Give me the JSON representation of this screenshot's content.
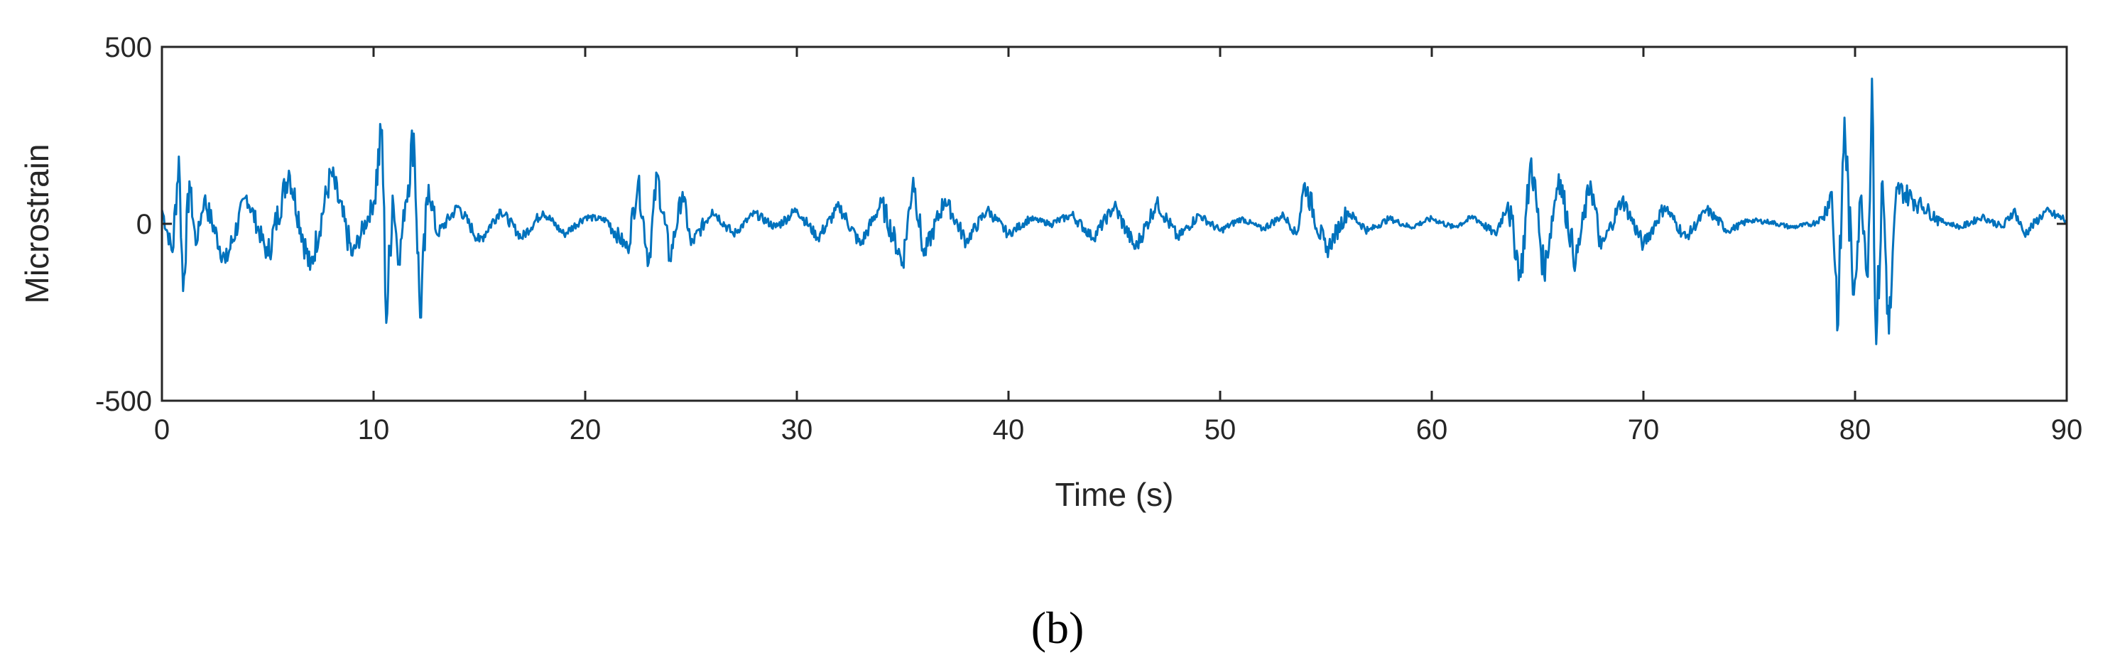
{
  "chart_data": {
    "type": "line",
    "title": "",
    "xlabel": "Time (s)",
    "ylabel": "Microstrain",
    "xlim": [
      0,
      90
    ],
    "ylim": [
      -500,
      500
    ],
    "x_ticks": [
      0,
      10,
      20,
      30,
      40,
      50,
      60,
      70,
      80,
      90
    ],
    "x_tick_labels": [
      "0",
      "10",
      "20",
      "30",
      "40",
      "50",
      "60",
      "70",
      "80",
      "90"
    ],
    "y_ticks": [
      -500,
      0,
      500
    ],
    "y_tick_labels": [
      "-500",
      "0",
      "500"
    ],
    "grid": false,
    "legend": "none",
    "series": [
      {
        "color": "#0072BD",
        "x": [
          0.0,
          0.5,
          0.8,
          1.0,
          1.3,
          1.6,
          2.0,
          3.0,
          4.0,
          5.0,
          6.0,
          7.0,
          8.0,
          9.0,
          10.0,
          10.4,
          10.6,
          10.9,
          11.2,
          11.5,
          11.9,
          12.2,
          12.6,
          13.0,
          14.0,
          15.0,
          16.0,
          17.0,
          18.0,
          19.0,
          20.0,
          21.0,
          22.0,
          22.5,
          23.0,
          23.4,
          24.0,
          24.6,
          25.0,
          26.0,
          27.0,
          28.0,
          29.0,
          30.0,
          31.0,
          32.0,
          33.0,
          34.0,
          35.0,
          35.5,
          36.0,
          37.0,
          38.0,
          39.0,
          40.0,
          41.0,
          42.0,
          43.0,
          44.0,
          45.0,
          46.0,
          47.0,
          48.0,
          49.0,
          50.0,
          51.0,
          52.0,
          53.0,
          53.6,
          54.0,
          55.0,
          56.0,
          57.0,
          58.0,
          59.0,
          60.0,
          61.0,
          62.0,
          63.0,
          63.6,
          64.2,
          64.7,
          65.3,
          66.0,
          66.8,
          67.5,
          68.0,
          69.0,
          70.0,
          71.0,
          72.0,
          73.0,
          74.0,
          75.0,
          76.0,
          77.0,
          78.0,
          78.5,
          78.9,
          79.2,
          79.5,
          79.9,
          80.3,
          80.6,
          80.8,
          81.0,
          81.3,
          81.6,
          82.0,
          83.0,
          84.0,
          85.0,
          86.0,
          87.0,
          87.5,
          88.0,
          89.0,
          90.0
        ],
        "y": [
          40,
          -80,
          190,
          -190,
          120,
          -60,
          70,
          -110,
          80,
          -90,
          150,
          -130,
          145,
          -90,
          60,
          265,
          -280,
          80,
          -110,
          60,
          255,
          -265,
          110,
          -30,
          50,
          -50,
          40,
          -40,
          35,
          -30,
          20,
          10,
          -70,
          120,
          -110,
          140,
          -100,
          90,
          -60,
          40,
          -30,
          30,
          -10,
          40,
          -40,
          50,
          -60,
          60,
          -110,
          130,
          -90,
          70,
          -50,
          40,
          -30,
          15,
          0,
          25,
          -40,
          50,
          -70,
          60,
          -40,
          25,
          -20,
          15,
          -15,
          25,
          -30,
          115,
          -80,
          35,
          -20,
          15,
          -10,
          15,
          -10,
          20,
          -30,
          60,
          -150,
          185,
          -140,
          140,
          -110,
          120,
          -70,
          70,
          -60,
          50,
          -40,
          40,
          -20,
          10,
          5,
          -10,
          0,
          20,
          90,
          -285,
          300,
          -200,
          80,
          -150,
          410,
          -340,
          120,
          -310,
          100,
          60,
          10,
          -10,
          20,
          -10,
          40,
          -30,
          35,
          10
        ]
      }
    ]
  },
  "panel_label": "(b)"
}
